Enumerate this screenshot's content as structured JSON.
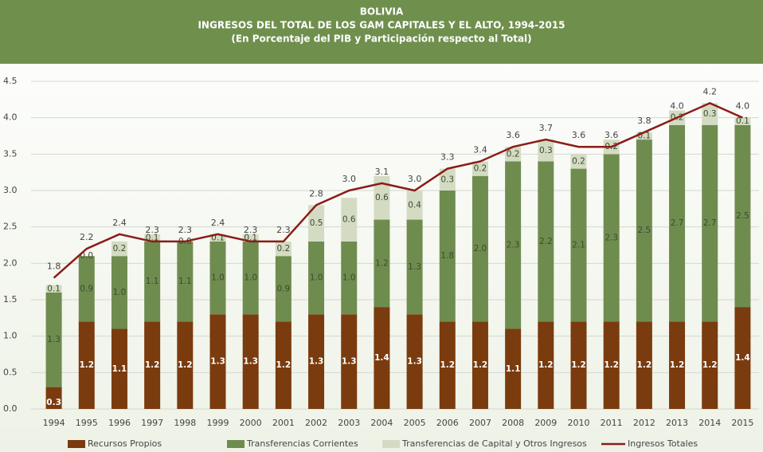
{
  "chart_data": {
    "type": "bar",
    "stacked": true,
    "title": "BOLIVIA",
    "subtitle": "INGRESOS DEL TOTAL DE LOS GAM CAPITALES Y EL ALTO, 1994-2015",
    "note": "(En Porcentaje del PIB y Participación respecto al Total)",
    "categories": [
      "1994",
      "1995",
      "1996",
      "1997",
      "1998",
      "1999",
      "2000",
      "2001",
      "2002",
      "2003",
      "2004",
      "2005",
      "2006",
      "2007",
      "2008",
      "2009",
      "2010",
      "2011",
      "2012",
      "2013",
      "2014",
      "2015"
    ],
    "ylim": [
      0,
      4.5
    ],
    "yticks": [
      {
        "value": 0,
        "label": "0.0"
      },
      0.5,
      {
        "value": 1,
        "label": "1.0"
      },
      1.5,
      {
        "value": 2,
        "label": "2.0"
      },
      2.5,
      {
        "value": 3,
        "label": "3.0"
      },
      3.5,
      {
        "value": 4,
        "label": "4.0"
      },
      4.5
    ],
    "grid": true,
    "legend": "bottom",
    "series": [
      {
        "name": "Recursos Propios",
        "color": "#7a3b0e",
        "values": [
          0.3,
          1.2,
          1.1,
          1.2,
          1.2,
          1.3,
          1.3,
          1.2,
          1.3,
          1.3,
          1.4,
          1.3,
          1.2,
          1.2,
          1.1,
          1.2,
          1.2,
          1.2,
          1.2,
          1.2,
          1.2,
          1.4
        ],
        "value_labels": [
          "0.3",
          "1.2",
          "1.1",
          "1.2",
          "1.2",
          "1.3",
          "1.3",
          "1.2",
          "1.3",
          "1.3",
          "1.4",
          "1.3",
          "1.2",
          "1.2",
          "1.1",
          "1.2",
          "1.2",
          "1.2",
          "1.2",
          "1.2",
          "1.2",
          "1.4"
        ]
      },
      {
        "name": "Transferencias Corrientes",
        "color": "#6f8c4f",
        "values": [
          1.3,
          0.9,
          1.0,
          1.1,
          1.1,
          1.0,
          1.0,
          0.9,
          1.0,
          1.0,
          1.2,
          1.3,
          1.8,
          2.0,
          2.3,
          2.2,
          2.1,
          2.3,
          2.5,
          2.7,
          2.7,
          2.5
        ],
        "value_labels": [
          "1.3",
          "0.9",
          "1.0",
          "1.1",
          "1.1",
          "1.0",
          "1.0",
          "0.9",
          "1.0",
          "1.0",
          "1.2",
          "1.3",
          "1.8",
          "2.0",
          "2.3",
          "2.2",
          "2.1",
          "2.3",
          "2.5",
          "2.7",
          "2.7",
          "2.5"
        ]
      },
      {
        "name": "Transferencias de Capital y Otros Ingresos",
        "color": "#d3dcc3",
        "values": [
          0.1,
          0.0,
          0.2,
          0.1,
          0.0,
          0.1,
          0.1,
          0.2,
          0.5,
          0.6,
          0.6,
          0.4,
          0.3,
          0.2,
          0.2,
          0.3,
          0.2,
          0.2,
          0.1,
          0.2,
          0.3,
          0.1
        ],
        "value_labels": [
          "0.1",
          "0.0",
          "0.2",
          "0.1",
          "0.0",
          "0.1",
          "0.1",
          "0.2",
          "0.5",
          "0.6",
          "0.6",
          "0.4",
          "0.3",
          "0.2",
          "0.2",
          "0.3",
          "0.2",
          "0.2",
          "0.1",
          "0.2",
          "0.3",
          "0.1"
        ]
      },
      {
        "name": "Ingresos Totales",
        "color": "#8b1c17",
        "type": "line",
        "values": [
          1.8,
          2.2,
          2.4,
          2.3,
          2.3,
          2.4,
          2.3,
          2.3,
          2.8,
          3.0,
          3.1,
          3.0,
          3.3,
          3.4,
          3.6,
          3.7,
          3.6,
          3.6,
          3.8,
          4.0,
          4.2,
          4.0
        ],
        "value_labels": [
          "1.8",
          "2.2",
          "2.4",
          "2.3",
          "2.3",
          "2.4",
          "2.3",
          "2.3",
          "2.8",
          "3.0",
          "3.1",
          "3.0",
          "3.3",
          "3.4",
          "3.6",
          "3.7",
          "3.6",
          "3.6",
          "3.8",
          "4.0",
          "4.2",
          "4.0"
        ]
      }
    ]
  }
}
